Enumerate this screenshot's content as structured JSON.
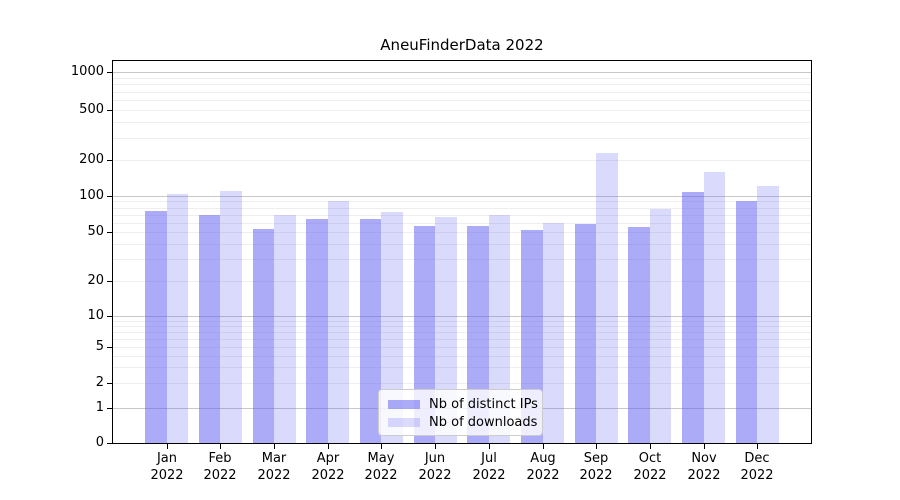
{
  "title": "AneuFinderData 2022",
  "legend": {
    "items": [
      {
        "label": "Nb of distinct IPs",
        "color": "rgba(88,88,240,0.50)"
      },
      {
        "label": "Nb of downloads",
        "color": "rgba(88,88,240,0.22)"
      }
    ],
    "position": "lower center"
  },
  "colors": {
    "series_dark": "rgba(88,88,240,0.50)",
    "series_light": "rgba(88,88,240,0.22)",
    "grid_major": "#c8c8c8",
    "grid_minor": "#eeeeee",
    "spine": "#000000",
    "background": "#ffffff"
  },
  "chart_data": {
    "type": "bar",
    "title": "AneuFinderData 2022",
    "categories": [
      "Jan 2022",
      "Feb 2022",
      "Mar 2022",
      "Apr 2022",
      "May 2022",
      "Jun 2022",
      "Jul 2022",
      "Aug 2022",
      "Sep 2022",
      "Oct 2022",
      "Nov 2022",
      "Dec 2022"
    ],
    "series": [
      {
        "name": "Nb of distinct IPs",
        "values": [
          75,
          69,
          53,
          64,
          64,
          56,
          56,
          52,
          58,
          55,
          109,
          91
        ]
      },
      {
        "name": "Nb of downloads",
        "values": [
          103,
          110,
          70,
          91,
          74,
          67,
          70,
          60,
          228,
          78,
          158,
          121
        ]
      }
    ],
    "xlabel": "",
    "ylabel": "",
    "yscale": "symlog",
    "yticks": [
      0,
      1,
      2,
      5,
      10,
      20,
      50,
      100,
      200,
      500,
      1000
    ],
    "ylim": [
      0,
      1000
    ],
    "grid": true,
    "legend_position": "lower center"
  }
}
